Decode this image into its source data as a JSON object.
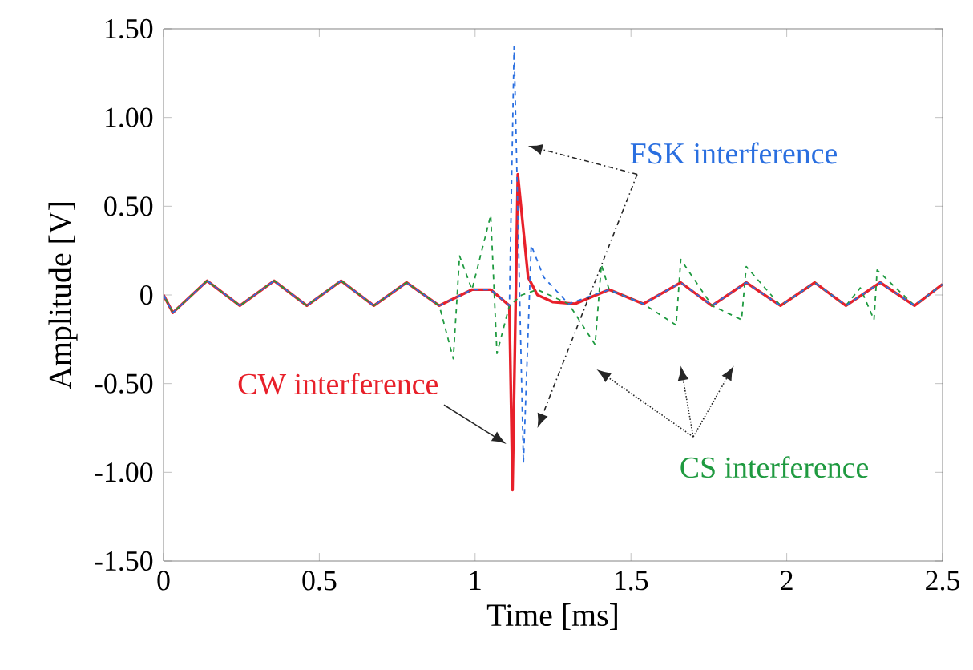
{
  "chart_data": {
    "type": "line",
    "xlabel": "Time [ms]",
    "ylabel": "Amplitude [V]",
    "xlim": [
      0,
      2.5
    ],
    "xticks": [
      0,
      0.5,
      1,
      1.5,
      2,
      2.5
    ],
    "ylim": [
      -1.5,
      1.5
    ],
    "yticks": [
      {
        "value": -1.5,
        "label": "-1.50"
      },
      {
        "value": -1,
        "label": "-1.00"
      },
      {
        "value": -0.5,
        "label": "-0.50"
      },
      0,
      {
        "value": 0.5,
        "label": "0.50"
      },
      {
        "value": 1,
        "label": "1.00"
      },
      {
        "value": 1.5,
        "label": "1.50"
      }
    ],
    "grid": false,
    "legend": false,
    "marker": "none",
    "series": [
      {
        "name": "CS interference",
        "color": "#1f9a40",
        "line_style": "dashed",
        "x": [
          0,
          0.03,
          0.14,
          0.245,
          0.355,
          0.46,
          0.57,
          0.675,
          0.78,
          0.885,
          0.93,
          0.95,
          0.99,
          1.05,
          1.07,
          1.11,
          1.15,
          1.2,
          1.3,
          1.385,
          1.405,
          1.43,
          1.54,
          1.645,
          1.66,
          1.76,
          1.855,
          1.87,
          1.98,
          2.09,
          2.19,
          2.236,
          2.28,
          2.29,
          2.41,
          2.5
        ],
        "values": [
          0,
          -0.1,
          0.08,
          -0.06,
          0.08,
          -0.06,
          0.08,
          -0.06,
          0.07,
          -0.06,
          -0.36,
          0.22,
          0.03,
          0.45,
          -0.33,
          -0.06,
          0,
          0.03,
          -0.05,
          -0.28,
          0.17,
          0.03,
          -0.05,
          -0.17,
          0.2,
          -0.06,
          -0.14,
          0.16,
          -0.06,
          0.07,
          -0.06,
          0.04,
          -0.14,
          0.14,
          -0.06,
          0.06
        ]
      },
      {
        "name": "FSK interference",
        "color": "#2a6fe0",
        "line_style": "dashed",
        "x": [
          0,
          0.03,
          0.14,
          0.245,
          0.355,
          0.46,
          0.57,
          0.675,
          0.78,
          0.885,
          0.99,
          1.05,
          1.11,
          1.125,
          1.155,
          1.18,
          1.22,
          1.3,
          1.43,
          1.54,
          1.66,
          1.76,
          1.87,
          1.98,
          2.09,
          2.19,
          2.3,
          2.41,
          2.5
        ],
        "values": [
          0,
          -0.1,
          0.08,
          -0.06,
          0.08,
          -0.06,
          0.08,
          -0.06,
          0.07,
          -0.06,
          0.03,
          0.03,
          -0.06,
          1.4,
          -0.95,
          0.28,
          0.1,
          -0.05,
          0.03,
          -0.05,
          0.07,
          -0.06,
          0.07,
          -0.06,
          0.07,
          -0.06,
          0.07,
          -0.06,
          0.06
        ]
      },
      {
        "name": "CW interference",
        "color": "#e8202a",
        "line_style": "solid",
        "x": [
          0,
          0.03,
          0.14,
          0.245,
          0.355,
          0.46,
          0.57,
          0.675,
          0.78,
          0.885,
          0.99,
          1.05,
          1.11,
          1.12,
          1.137,
          1.17,
          1.2,
          1.25,
          1.32,
          1.43,
          1.54,
          1.66,
          1.76,
          1.87,
          1.98,
          2.09,
          2.19,
          2.3,
          2.41,
          2.5
        ],
        "values": [
          0,
          -0.1,
          0.08,
          -0.06,
          0.08,
          -0.06,
          0.08,
          -0.06,
          0.07,
          -0.06,
          0.03,
          0.03,
          -0.06,
          -1.1,
          0.68,
          0.1,
          0,
          -0.04,
          -0.05,
          0.03,
          -0.05,
          0.07,
          -0.06,
          0.07,
          -0.06,
          0.07,
          -0.06,
          0.07,
          -0.06,
          0.06
        ]
      }
    ]
  }
}
